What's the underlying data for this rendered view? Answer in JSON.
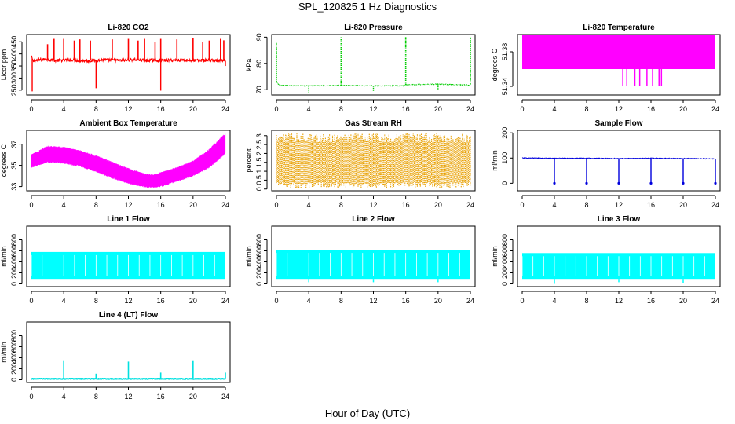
{
  "figure": {
    "title": "SPL_120825  1 Hz Diagnostics",
    "xlabel": "Hour of Day (UTC)"
  },
  "chart_data": [
    {
      "type": "line",
      "title": "Li-820 CO2",
      "ylabel": "Licor ppm",
      "color": "#ff0000",
      "xlim": [
        0,
        24
      ],
      "xticks": [
        0,
        4,
        8,
        12,
        16,
        20,
        24
      ],
      "ylim": [
        230,
        480
      ],
      "yticks": [
        250,
        300,
        350,
        400,
        450
      ],
      "series": [
        {
          "x": [
            0,
            0.2,
            1,
            2,
            3,
            4,
            5,
            6,
            7,
            8,
            9,
            10,
            11,
            12,
            13,
            14,
            15,
            16,
            17,
            18,
            19,
            20,
            21,
            22,
            23,
            24
          ],
          "y": [
            390,
            370,
            375,
            378,
            372,
            374,
            376,
            372,
            371,
            373,
            375,
            374,
            372,
            375,
            376,
            373,
            374,
            372,
            373,
            374,
            375,
            372,
            373,
            374,
            372,
            370
          ]
        }
      ],
      "spikes_up": [
        [
          2,
          440
        ],
        [
          2.8,
          462
        ],
        [
          4,
          462
        ],
        [
          5.3,
          455
        ],
        [
          6,
          460
        ],
        [
          7.3,
          455
        ],
        [
          10,
          460
        ],
        [
          12,
          462
        ],
        [
          13.2,
          455
        ],
        [
          14,
          462
        ],
        [
          15.3,
          450
        ],
        [
          16,
          462
        ],
        [
          18,
          460
        ],
        [
          20,
          464
        ],
        [
          21.2,
          450
        ],
        [
          22,
          455
        ],
        [
          23.4,
          462
        ],
        [
          23.8,
          456
        ]
      ],
      "spikes_down": [
        [
          0.1,
          245
        ],
        [
          8,
          258
        ],
        [
          16,
          248
        ],
        [
          24,
          350
        ]
      ]
    },
    {
      "type": "line",
      "title": "Li-820 Pressure",
      "ylabel": "kPa",
      "color": "#00cc00",
      "xlim": [
        0,
        24
      ],
      "xticks": [
        0,
        4,
        8,
        12,
        16,
        20,
        24
      ],
      "ylim": [
        68,
        91
      ],
      "yticks": [
        70,
        80,
        90
      ],
      "series": [
        {
          "x": [
            0,
            0.3,
            1,
            4,
            8,
            12,
            15.9,
            16,
            20,
            23.9,
            24
          ],
          "y": [
            73,
            71.8,
            71.6,
            71.5,
            71.6,
            71.5,
            71.5,
            71.9,
            72.1,
            71.8,
            72
          ]
        }
      ],
      "spikes_up": [
        [
          0,
          88
        ],
        [
          8,
          90
        ],
        [
          16,
          90
        ],
        [
          24,
          90
        ]
      ],
      "spikes_down": [
        [
          4,
          69
        ],
        [
          12,
          69.5
        ],
        [
          20,
          70
        ]
      ]
    },
    {
      "type": "area",
      "title": "Li-820 Temperature",
      "ylabel": "degrees C",
      "color": "#ff00ff",
      "xlim": [
        0,
        24
      ],
      "xticks": [
        0,
        4,
        8,
        12,
        16,
        20,
        24
      ],
      "ylim": [
        51.33,
        51.4
      ],
      "yticks": [
        51.34,
        51.38
      ],
      "band": {
        "low": 51.36,
        "high": 51.4
      },
      "dips": [
        [
          12.5,
          51.34
        ],
        [
          13,
          51.34
        ],
        [
          14,
          51.34
        ],
        [
          14.6,
          51.34
        ],
        [
          15.5,
          51.34
        ],
        [
          16.2,
          51.34
        ],
        [
          17,
          51.34
        ],
        [
          17.3,
          51.34
        ]
      ]
    },
    {
      "type": "area",
      "title": "Ambient Box Temperature",
      "ylabel": "degrees C",
      "color": "#ff00ff",
      "xlim": [
        0,
        24
      ],
      "xticks": [
        0,
        4,
        8,
        12,
        16,
        20,
        24
      ],
      "ylim": [
        32.6,
        38.3
      ],
      "yticks": [
        33,
        35,
        37
      ],
      "band_low": {
        "x": [
          0,
          2,
          4,
          6,
          8,
          10,
          12,
          14,
          15,
          16,
          18,
          20,
          22,
          24
        ],
        "y": [
          34.9,
          35.4,
          35.3,
          35.0,
          34.5,
          33.9,
          33.4,
          33.05,
          33.0,
          33.1,
          33.6,
          34.1,
          34.9,
          36.2
        ]
      },
      "band_high": {
        "x": [
          0,
          2,
          4,
          6,
          8,
          10,
          12,
          14,
          15,
          16,
          18,
          20,
          22,
          24
        ],
        "y": [
          35.9,
          36.7,
          36.6,
          36.3,
          35.8,
          35.2,
          34.6,
          34.1,
          34.0,
          34.2,
          34.7,
          35.3,
          36.4,
          37.9
        ]
      }
    },
    {
      "type": "area",
      "title": "Gas Stream RH",
      "ylabel": "percent",
      "color": "#e8a000",
      "xlim": [
        0,
        24
      ],
      "xticks": [
        0,
        4,
        8,
        12,
        16,
        20,
        24
      ],
      "ylim": [
        -0.1,
        3.3
      ],
      "yticks": [
        0.0,
        0.5,
        1.0,
        1.5,
        2.0,
        2.5,
        3.0
      ],
      "band": {
        "low": 0.4,
        "high": 2.8
      }
    },
    {
      "type": "line",
      "title": "Sample Flow",
      "ylabel": "ml/min",
      "color": "#0000dd",
      "xlim": [
        0,
        24
      ],
      "xticks": [
        0,
        4,
        8,
        12,
        16,
        20,
        24
      ],
      "ylim": [
        -30,
        210
      ],
      "yticks": [
        0,
        100,
        200
      ],
      "series": [
        {
          "x": [
            0,
            4,
            8,
            12,
            16,
            20,
            24
          ],
          "y": [
            100,
            99,
            99,
            98,
            99,
            98,
            97
          ]
        }
      ],
      "spikes_down": [
        [
          4,
          0
        ],
        [
          8,
          0
        ],
        [
          12,
          0
        ],
        [
          16,
          0
        ],
        [
          20,
          0
        ],
        [
          24,
          0
        ]
      ]
    },
    {
      "type": "area",
      "title": "Line 1 Flow",
      "ylabel": "ml/min",
      "color": "#00ffff",
      "xlim": [
        0,
        24
      ],
      "xticks": [
        0,
        4,
        8,
        12,
        16,
        20,
        24
      ],
      "ylim": [
        -50,
        1050
      ],
      "yticks": [
        0,
        200,
        400,
        600,
        800
      ],
      "band": {
        "low": 90,
        "high": 580
      },
      "dips": []
    },
    {
      "type": "area",
      "title": "Line 2 Flow",
      "ylabel": "ml/min",
      "color": "#00ffff",
      "xlim": [
        0,
        24
      ],
      "xticks": [
        0,
        4,
        8,
        12,
        16,
        20,
        24
      ],
      "ylim": [
        -50,
        1050
      ],
      "yticks": [
        0,
        200,
        400,
        600,
        800
      ],
      "band": {
        "low": 90,
        "high": 620
      },
      "dips": [
        [
          4,
          30
        ],
        [
          12,
          30
        ],
        [
          20,
          30
        ]
      ]
    },
    {
      "type": "area",
      "title": "Line 3 Flow",
      "ylabel": "ml/min",
      "color": "#00ffff",
      "xlim": [
        0,
        24
      ],
      "xticks": [
        0,
        4,
        8,
        12,
        16,
        20,
        24
      ],
      "ylim": [
        -50,
        1050
      ],
      "yticks": [
        0,
        200,
        400,
        600,
        800
      ],
      "band": {
        "low": 90,
        "high": 560
      },
      "dips": [
        [
          4,
          0
        ],
        [
          12,
          30
        ],
        [
          20,
          10
        ]
      ]
    },
    {
      "type": "line",
      "title": "Line 4 (LT) Flow",
      "ylabel": "ml/min",
      "color": "#00e0e0",
      "xlim": [
        0,
        24
      ],
      "xticks": [
        0,
        4,
        8,
        12,
        16,
        20,
        24
      ],
      "ylim": [
        -50,
        1050
      ],
      "yticks": [
        0,
        200,
        400,
        600,
        800
      ],
      "series": [
        {
          "x": [
            0,
            24
          ],
          "y": [
            10,
            10
          ]
        }
      ],
      "spikes_up": [
        [
          4,
          340
        ],
        [
          8,
          110
        ],
        [
          12,
          330
        ],
        [
          16,
          130
        ],
        [
          20,
          340
        ],
        [
          24,
          130
        ]
      ]
    }
  ]
}
